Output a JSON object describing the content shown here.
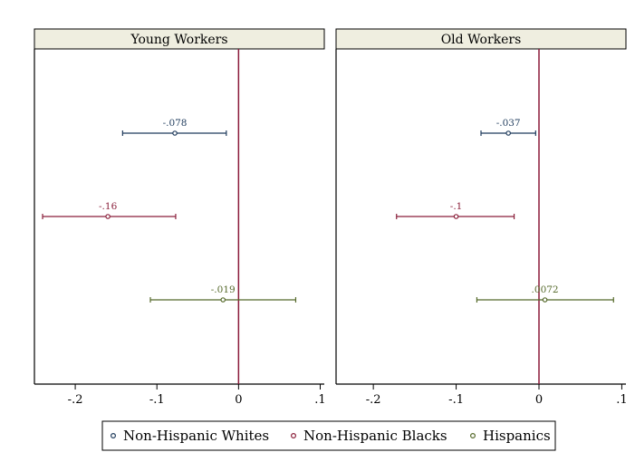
{
  "chart_data": [
    {
      "type": "scatter",
      "title": "Young Workers",
      "xlim": [
        -0.25,
        0.105
      ],
      "xticks": [
        {
          "value": -0.2,
          "label": "-.2"
        },
        {
          "value": -0.1,
          "label": "-.1"
        },
        {
          "value": 0,
          "label": "0"
        },
        {
          "value": 0.1,
          "label": ".1"
        }
      ],
      "reference_line": 0,
      "series": [
        {
          "name": "Non-Hispanic Whites",
          "estimate": -0.078,
          "ci_low": -0.142,
          "ci_high": -0.015,
          "label": "-.078"
        },
        {
          "name": "Non-Hispanic Blacks",
          "estimate": -0.16,
          "ci_low": -0.24,
          "ci_high": -0.077,
          "label": "-.16"
        },
        {
          "name": "Hispanics",
          "estimate": -0.019,
          "ci_low": -0.108,
          "ci_high": 0.07,
          "label": "-.019"
        }
      ]
    },
    {
      "type": "scatter",
      "title": "Old Workers",
      "xlim": [
        -0.245,
        0.105
      ],
      "xticks": [
        {
          "value": -0.2,
          "label": "-.2"
        },
        {
          "value": -0.1,
          "label": "-.1"
        },
        {
          "value": 0,
          "label": "0"
        },
        {
          "value": 0.1,
          "label": ".1"
        }
      ],
      "reference_line": 0,
      "series": [
        {
          "name": "Non-Hispanic Whites",
          "estimate": -0.037,
          "ci_low": -0.07,
          "ci_high": -0.004,
          "label": "-.037"
        },
        {
          "name": "Non-Hispanic Blacks",
          "estimate": -0.1,
          "ci_low": -0.172,
          "ci_high": -0.03,
          "label": "-.1"
        },
        {
          "name": "Hispanics",
          "estimate": 0.0072,
          "ci_low": -0.075,
          "ci_high": 0.09,
          "label": ".0072"
        }
      ]
    }
  ],
  "legend": {
    "placement": "bottom",
    "items": [
      "Non-Hispanic Whites",
      "Non-Hispanic Blacks",
      "Hispanics"
    ]
  },
  "colors": {
    "Non-Hispanic Whites": "#1f3b5c",
    "Non-Hispanic Blacks": "#8a1f3a",
    "Hispanics": "#55692a",
    "reference_line": "#8b1a3a",
    "header_fill": "#efeee0",
    "border": "#000000"
  }
}
